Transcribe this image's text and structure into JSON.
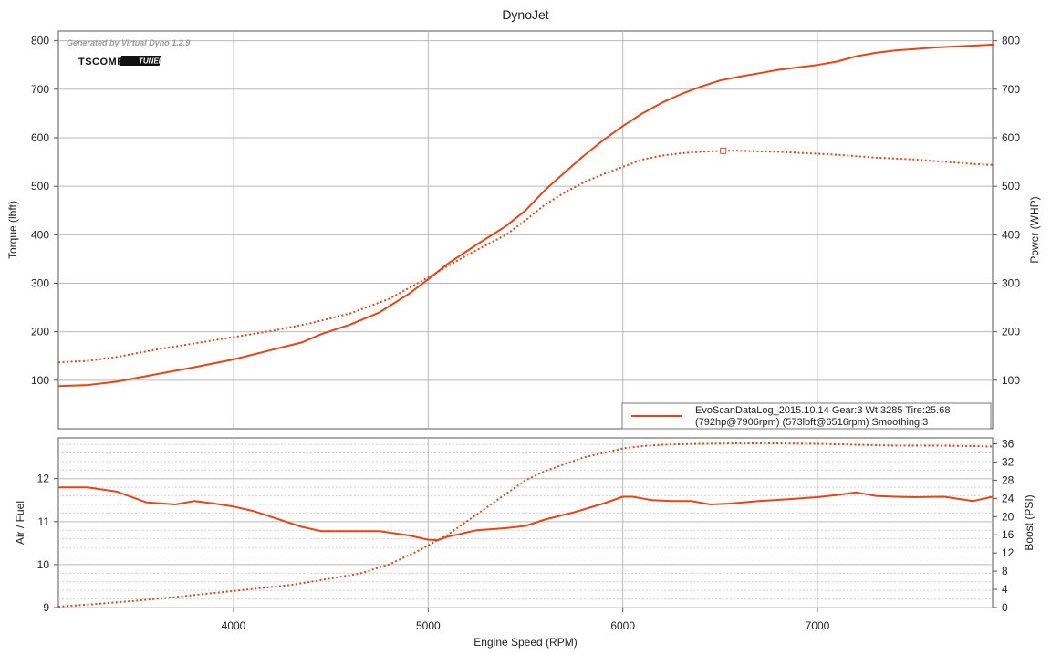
{
  "chart_data": [
    {
      "type": "line",
      "title": "DynoJet",
      "xlabel": "",
      "ylabel": "Torque (lbft)",
      "ylabel_right": "Power (WHP)",
      "xlim": [
        3100,
        7900
      ],
      "ylim": [
        0,
        820
      ],
      "ylim_right": [
        0,
        820
      ],
      "y_ticks": [
        100,
        200,
        300,
        400,
        500,
        600,
        700,
        800
      ],
      "x_gridlines": [
        4000,
        5000,
        6000,
        7000
      ],
      "grid": true,
      "legend_position": "bottom-right",
      "watermark": "Generated by Virtual Dyno 1.2.9",
      "logo": "TSCOMP",
      "logo_tag": "TUNED",
      "legend": {
        "line1": "EvoScanDataLog_2015.10.14 Gear:3 Wt:3285 Tire:25.68",
        "line2": "(792hp@7906rpm) (573lbft@6516rpm) Smoothing:3"
      },
      "peak_marker": {
        "x": 6516,
        "y": 573
      },
      "series": [
        {
          "style": "solid",
          "axis": "right",
          "x": [
            3100,
            3250,
            3400,
            3600,
            3800,
            4000,
            4200,
            4350,
            4450,
            4600,
            4750,
            4900,
            5000,
            5100,
            5250,
            5400,
            5500,
            5600,
            5700,
            5800,
            5900,
            6000,
            6100,
            6200,
            6300,
            6400,
            6500,
            6600,
            6700,
            6800,
            6900,
            7000,
            7100,
            7200,
            7300,
            7400,
            7500,
            7600,
            7700,
            7800,
            7906
          ],
          "values": [
            88,
            90,
            97,
            112,
            127,
            143,
            163,
            178,
            195,
            215,
            240,
            278,
            308,
            340,
            380,
            418,
            450,
            492,
            528,
            563,
            595,
            624,
            650,
            672,
            690,
            705,
            718,
            726,
            733,
            740,
            745,
            750,
            757,
            768,
            775,
            780,
            783,
            786,
            788,
            790,
            792
          ]
        },
        {
          "style": "dotted",
          "axis": "left",
          "x": [
            3100,
            3250,
            3400,
            3600,
            3800,
            4000,
            4200,
            4400,
            4600,
            4800,
            5000,
            5200,
            5400,
            5500,
            5600,
            5700,
            5800,
            5900,
            6000,
            6100,
            6200,
            6300,
            6400,
            6516,
            6600,
            6700,
            6800,
            6900,
            7000,
            7100,
            7200,
            7300,
            7400,
            7500,
            7600,
            7700,
            7800,
            7900
          ],
          "values": [
            137,
            140,
            148,
            163,
            176,
            189,
            202,
            218,
            238,
            268,
            312,
            358,
            400,
            430,
            462,
            487,
            508,
            525,
            540,
            555,
            563,
            568,
            571,
            573,
            573,
            572,
            571,
            569,
            567,
            565,
            562,
            559,
            557,
            555,
            552,
            549,
            546,
            544
          ]
        }
      ]
    },
    {
      "type": "line",
      "title": "",
      "xlabel": "Engine Speed (RPM)",
      "ylabel": "Air / Fuel",
      "ylabel_right": "Boost (PSI)",
      "xlim": [
        3100,
        7900
      ],
      "ylim": [
        9,
        12.95
      ],
      "ylim_right": [
        0,
        37.3
      ],
      "y_ticks": [
        9,
        10,
        11,
        12
      ],
      "y_ticks_right": [
        0,
        4,
        8,
        12,
        16,
        20,
        24,
        28,
        32,
        36
      ],
      "x_ticks": [
        4000,
        5000,
        6000,
        7000
      ],
      "grid": true,
      "series": [
        {
          "style": "solid",
          "axis": "left",
          "x": [
            3100,
            3250,
            3400,
            3550,
            3700,
            3800,
            3900,
            4000,
            4100,
            4200,
            4350,
            4450,
            4600,
            4750,
            4900,
            5000,
            5050,
            5100,
            5250,
            5400,
            5500,
            5600,
            5750,
            5900,
            6000,
            6050,
            6150,
            6250,
            6350,
            6450,
            6550,
            6700,
            6850,
            7000,
            7100,
            7200,
            7300,
            7400,
            7500,
            7650,
            7800,
            7900
          ],
          "values": [
            11.8,
            11.8,
            11.7,
            11.45,
            11.4,
            11.48,
            11.42,
            11.35,
            11.25,
            11.1,
            10.88,
            10.78,
            10.78,
            10.78,
            10.68,
            10.58,
            10.57,
            10.65,
            10.8,
            10.85,
            10.9,
            11.05,
            11.22,
            11.42,
            11.58,
            11.58,
            11.5,
            11.48,
            11.48,
            11.4,
            11.42,
            11.48,
            11.52,
            11.57,
            11.62,
            11.68,
            11.6,
            11.58,
            11.57,
            11.58,
            11.48,
            11.58
          ]
        },
        {
          "style": "dotted",
          "axis": "right",
          "x": [
            3100,
            3300,
            3500,
            3700,
            3900,
            4100,
            4300,
            4500,
            4650,
            4800,
            4950,
            5100,
            5250,
            5400,
            5500,
            5600,
            5700,
            5800,
            5900,
            6000,
            6100,
            6200,
            6400,
            6600,
            6800,
            7000,
            7200,
            7400,
            7600,
            7800,
            7900
          ],
          "values": [
            0.2,
            0.8,
            1.5,
            2.3,
            3.2,
            4.1,
            5.0,
            6.4,
            7.5,
            9.5,
            12.5,
            16.0,
            20.5,
            25.0,
            28.0,
            30.0,
            31.5,
            33.0,
            34.0,
            35.0,
            35.5,
            35.8,
            36.0,
            36.1,
            36.1,
            36.0,
            35.8,
            35.6,
            35.6,
            35.5,
            35.4
          ]
        }
      ]
    }
  ]
}
